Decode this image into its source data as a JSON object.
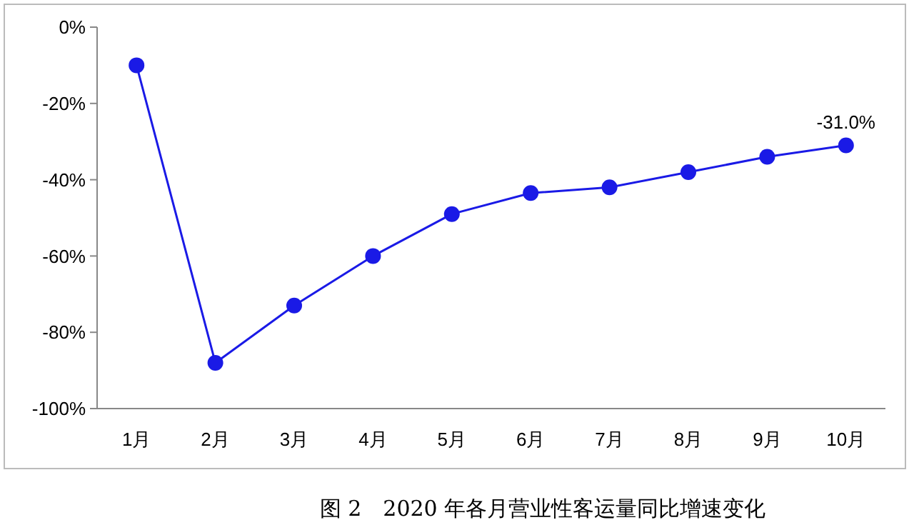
{
  "chart_data": {
    "type": "line",
    "categories": [
      "1月",
      "2月",
      "3月",
      "4月",
      "5月",
      "6月",
      "7月",
      "8月",
      "9月",
      "10月"
    ],
    "series": [
      {
        "color": "#1a1ae6",
        "values": [
          -10,
          -88,
          -73,
          -60,
          -49,
          -43.5,
          -42,
          -38,
          -34,
          -31
        ]
      }
    ],
    "ylim": [
      -100,
      0
    ],
    "yticks": [
      {
        "value": -100,
        "label": "-100%"
      },
      {
        "value": -80,
        "label": "-80%"
      },
      {
        "value": -60,
        "label": "-60%"
      },
      {
        "value": -40,
        "label": "-40%"
      },
      {
        "value": -20,
        "label": "-20%"
      },
      {
        "value": 0,
        "label": "0%"
      }
    ],
    "marker": "circle",
    "line_style": "solid",
    "grid": false,
    "annotations": [
      {
        "text": "-31.0%",
        "x": "10月",
        "y": -31
      },
      "图 2　2020 年各月营业性客运量同比增速变化"
    ]
  }
}
